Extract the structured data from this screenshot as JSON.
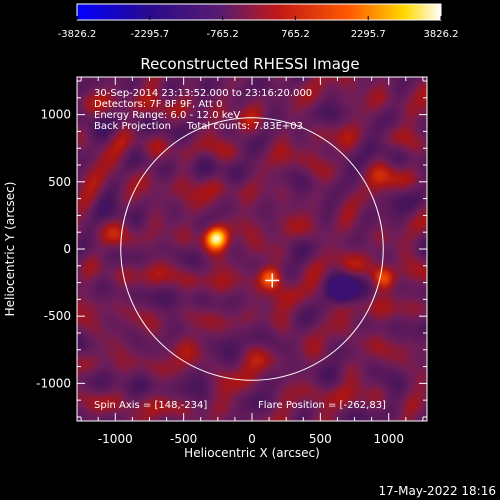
{
  "colorbar": {
    "ticks": [
      "-3826.2",
      "-2295.7",
      "-765.2",
      "765.2",
      "2295.7",
      "3826.2"
    ],
    "min": -3826.2,
    "max": 3826.2
  },
  "plot": {
    "title": "Reconstructed RHESSI Image",
    "xlabel": "Heliocentric X (arcsec)",
    "ylabel": "Heliocentric Y (arcsec)",
    "x_ticks": [
      "-1000",
      "-500",
      "0",
      "500",
      "1000"
    ],
    "y_ticks": [
      "1000",
      "500",
      "0",
      "-500",
      "-1000"
    ],
    "info_lines": [
      "30-Sep-2014 23:13:52.000 to 23:16:20.000",
      "Detectors: 7F 8F 9F, Att 0",
      "Energy Range: 6.0 - 12.0 keV",
      "Back Projection     Total counts: 7.83E+03"
    ],
    "spin_axis": "Spin Axis = [148,-234]",
    "flare_position": "Flare Position = [-262,83]"
  },
  "footer": {
    "date_time": "17-May-2022 18:16"
  },
  "chart_data": {
    "type": "heatmap",
    "title": "Reconstructed RHESSI Image",
    "xlabel": "Heliocentric X (arcsec)",
    "ylabel": "Heliocentric Y (arcsec)",
    "xlim": [
      -1280,
      1280
    ],
    "ylim": [
      -1280,
      1280
    ],
    "x_ticks": [
      -1000,
      -500,
      0,
      500,
      1000
    ],
    "y_ticks": [
      -1000,
      -500,
      0,
      500,
      1000
    ],
    "color_range": [
      -3826.2,
      3826.2
    ],
    "colormap": "blue-purple-red-yellow-white",
    "solar_limb_radius": 960,
    "marker": [
      148,
      -234
    ],
    "bright_sources": [
      {
        "x": -262,
        "y": 83,
        "level": 3826.2
      },
      {
        "x": 130,
        "y": -210,
        "level": 2600
      },
      {
        "x": 960,
        "y": -220,
        "level": 1900
      }
    ],
    "dark_sources": [
      {
        "x": 660,
        "y": -300,
        "level": -3200
      }
    ]
  }
}
